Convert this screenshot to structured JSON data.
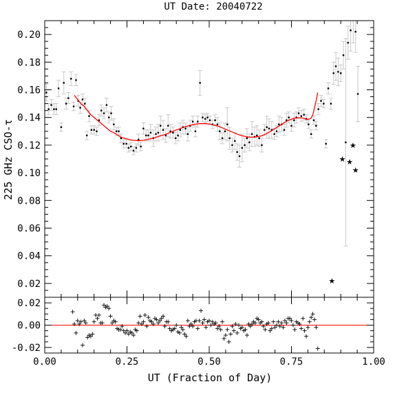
{
  "chart_data": [
    {
      "type": "scatter",
      "title": "UT Date: 20040722",
      "xlabel": "",
      "ylabel": "225 GHz CSO-τ",
      "xlim": [
        0.0,
        1.0
      ],
      "ylim": [
        0.01,
        0.21
      ],
      "yticks": [
        "0.02",
        "0.04",
        "0.06",
        "0.08",
        "0.10",
        "0.12",
        "0.14",
        "0.16",
        "0.18",
        "0.20"
      ],
      "series": [
        {
          "marker": "dot",
          "color": "#000000",
          "errorbar_color": "#c8c8c8",
          "x": [
            0.005,
            0.012,
            0.02,
            0.028,
            0.035,
            0.042,
            0.05,
            0.058,
            0.065,
            0.072,
            0.08,
            0.088,
            0.095,
            0.102,
            0.108,
            0.115,
            0.122,
            0.128,
            0.135,
            0.142,
            0.15,
            0.158,
            0.165,
            0.172,
            0.18,
            0.188,
            0.195,
            0.202,
            0.21,
            0.218,
            0.225,
            0.232,
            0.24,
            0.248,
            0.255,
            0.262,
            0.27,
            0.278,
            0.285,
            0.292,
            0.3,
            0.308,
            0.315,
            0.322,
            0.33,
            0.338,
            0.345,
            0.352,
            0.36,
            0.368,
            0.375,
            0.382,
            0.39,
            0.398,
            0.405,
            0.412,
            0.42,
            0.428,
            0.435,
            0.442,
            0.45,
            0.458,
            0.465,
            0.472,
            0.48,
            0.488,
            0.495,
            0.502,
            0.51,
            0.518,
            0.525,
            0.532,
            0.54,
            0.548,
            0.555,
            0.562,
            0.57,
            0.578,
            0.585,
            0.592,
            0.6,
            0.608,
            0.615,
            0.622,
            0.63,
            0.638,
            0.645,
            0.652,
            0.66,
            0.668,
            0.675,
            0.682,
            0.69,
            0.698,
            0.705,
            0.712,
            0.72,
            0.728,
            0.735,
            0.742,
            0.75,
            0.758,
            0.765,
            0.772,
            0.78,
            0.788,
            0.795,
            0.802,
            0.81,
            0.818,
            0.825,
            0.832,
            0.84,
            0.848,
            0.855,
            0.862,
            0.87,
            0.878,
            0.885,
            0.892,
            0.9,
            0.908,
            0.915,
            0.922,
            0.93,
            0.938,
            0.945,
            0.952
          ],
          "y": [
            0.158,
            0.146,
            0.149,
            0.146,
            0.146,
            0.161,
            0.133,
            0.165,
            0.15,
            0.154,
            0.168,
            0.148,
            0.167,
            0.152,
            0.147,
            0.153,
            0.15,
            0.127,
            0.141,
            0.131,
            0.131,
            0.13,
            0.138,
            0.145,
            0.143,
            0.149,
            0.14,
            0.143,
            0.135,
            0.13,
            0.13,
            0.125,
            0.121,
            0.121,
            0.118,
            0.119,
            0.116,
            0.118,
            0.124,
            0.119,
            0.132,
            0.127,
            0.127,
            0.129,
            0.125,
            0.128,
            0.129,
            0.134,
            0.131,
            0.127,
            0.134,
            0.13,
            0.129,
            0.125,
            0.127,
            0.131,
            0.133,
            0.132,
            0.128,
            0.134,
            0.137,
            0.13,
            0.137,
            0.165,
            0.14,
            0.139,
            0.14,
            0.138,
            0.135,
            0.138,
            0.135,
            0.13,
            0.125,
            0.13,
            0.135,
            0.125,
            0.12,
            0.123,
            0.115,
            0.112,
            0.118,
            0.12,
            0.125,
            0.122,
            0.128,
            0.126,
            0.127,
            0.125,
            0.12,
            0.131,
            0.133,
            0.132,
            0.131,
            0.128,
            0.13,
            0.135,
            0.135,
            0.131,
            0.138,
            0.14,
            0.134,
            0.138,
            0.14,
            0.143,
            0.141,
            0.142,
            0.139,
            0.135,
            0.128,
            0.138,
            0.134,
            0.146,
            0.152,
            0.15,
            0.121,
            0.161,
            0.15,
            0.172,
            0.177,
            0.173,
            0.172,
            0.185,
            0.122,
            0.194,
            0.203,
            0.212,
            0.202,
            0.157
          ],
          "yerr": [
            0.006,
            0.004,
            0.004,
            0.004,
            0.004,
            0.006,
            0.003,
            0.008,
            0.004,
            0.004,
            0.005,
            0.003,
            0.004,
            0.004,
            0.004,
            0.004,
            0.004,
            0.003,
            0.004,
            0.003,
            0.003,
            0.003,
            0.004,
            0.004,
            0.004,
            0.005,
            0.004,
            0.005,
            0.004,
            0.003,
            0.003,
            0.003,
            0.003,
            0.003,
            0.003,
            0.003,
            0.003,
            0.003,
            0.004,
            0.003,
            0.004,
            0.004,
            0.004,
            0.006,
            0.006,
            0.005,
            0.006,
            0.007,
            0.007,
            0.005,
            0.008,
            0.005,
            0.004,
            0.004,
            0.004,
            0.005,
            0.005,
            0.004,
            0.005,
            0.004,
            0.004,
            0.004,
            0.004,
            0.009,
            0.003,
            0.003,
            0.003,
            0.003,
            0.003,
            0.004,
            0.005,
            0.006,
            0.004,
            0.006,
            0.012,
            0.008,
            0.005,
            0.006,
            0.006,
            0.008,
            0.01,
            0.005,
            0.007,
            0.006,
            0.009,
            0.007,
            0.007,
            0.006,
            0.005,
            0.004,
            0.008,
            0.007,
            0.006,
            0.004,
            0.004,
            0.006,
            0.005,
            0.004,
            0.005,
            0.004,
            0.004,
            0.005,
            0.004,
            0.004,
            0.004,
            0.004,
            0.003,
            0.003,
            0.003,
            0.003,
            0.003,
            0.004,
            0.004,
            0.003,
            0.003,
            0.004,
            0.004,
            0.008,
            0.01,
            0.01,
            0.006,
            0.01,
            0.075,
            0.012,
            0.015,
            0.018,
            0.015,
            0.02
          ]
        },
        {
          "marker": "star",
          "color": "#000000",
          "x": [
            0.873,
            0.905,
            0.927,
            0.937,
            0.945
          ],
          "y": [
            0.022,
            0.11,
            0.108,
            0.12,
            0.102
          ]
        },
        {
          "type": "line",
          "color": "#ff0000",
          "x": [
            0.09,
            0.1,
            0.11,
            0.12,
            0.13,
            0.14,
            0.15,
            0.16,
            0.17,
            0.18,
            0.19,
            0.2,
            0.21,
            0.22,
            0.23,
            0.24,
            0.25,
            0.26,
            0.27,
            0.28,
            0.29,
            0.3,
            0.31,
            0.32,
            0.33,
            0.34,
            0.35,
            0.36,
            0.37,
            0.38,
            0.39,
            0.4,
            0.41,
            0.42,
            0.43,
            0.44,
            0.45,
            0.46,
            0.47,
            0.48,
            0.49,
            0.5,
            0.51,
            0.52,
            0.53,
            0.54,
            0.55,
            0.56,
            0.57,
            0.58,
            0.59,
            0.6,
            0.61,
            0.62,
            0.63,
            0.64,
            0.65,
            0.66,
            0.67,
            0.68,
            0.69,
            0.7,
            0.71,
            0.72,
            0.73,
            0.74,
            0.75,
            0.76,
            0.77,
            0.78,
            0.79,
            0.8,
            0.81,
            0.815,
            0.82,
            0.825,
            0.83
          ],
          "y": [
            0.156,
            0.153,
            0.15,
            0.148,
            0.145,
            0.142,
            0.14,
            0.138,
            0.136,
            0.134,
            0.132,
            0.13,
            0.129,
            0.1275,
            0.126,
            0.125,
            0.1245,
            0.1238,
            0.1235,
            0.1233,
            0.1233,
            0.1235,
            0.124,
            0.1245,
            0.125,
            0.1258,
            0.1265,
            0.1273,
            0.128,
            0.129,
            0.13,
            0.131,
            0.1318,
            0.1328,
            0.1335,
            0.1342,
            0.1348,
            0.1352,
            0.1355,
            0.1355,
            0.1355,
            0.1353,
            0.1348,
            0.1342,
            0.1335,
            0.1325,
            0.1315,
            0.1305,
            0.1295,
            0.1285,
            0.1275,
            0.1268,
            0.1262,
            0.1258,
            0.1257,
            0.1258,
            0.1262,
            0.1268,
            0.1278,
            0.129,
            0.1305,
            0.132,
            0.1335,
            0.135,
            0.1365,
            0.1378,
            0.1388,
            0.1395,
            0.1398,
            0.1398,
            0.1392,
            0.1385,
            0.1395,
            0.142,
            0.147,
            0.152,
            0.158
          ]
        }
      ]
    },
    {
      "type": "scatter",
      "title": "",
      "xlabel": "UT (Fraction of Day)",
      "ylabel": "",
      "xlim": [
        0.0,
        1.0
      ],
      "ylim": [
        -0.025,
        0.025
      ],
      "xticks": [
        "0.00",
        "0.25",
        "0.50",
        "0.75",
        "1.00"
      ],
      "yticks": [
        "-0.02",
        "0.00",
        "0.02"
      ],
      "zero_line_color": "#ff0000",
      "series": [
        {
          "marker": "plus",
          "color": "#000000",
          "x": [
            0.085,
            0.09,
            0.095,
            0.1,
            0.105,
            0.11,
            0.115,
            0.12,
            0.125,
            0.13,
            0.135,
            0.14,
            0.145,
            0.15,
            0.155,
            0.16,
            0.165,
            0.17,
            0.175,
            0.18,
            0.185,
            0.19,
            0.195,
            0.2,
            0.205,
            0.21,
            0.215,
            0.22,
            0.225,
            0.23,
            0.235,
            0.24,
            0.245,
            0.25,
            0.255,
            0.26,
            0.265,
            0.27,
            0.275,
            0.28,
            0.285,
            0.29,
            0.295,
            0.3,
            0.305,
            0.31,
            0.315,
            0.32,
            0.325,
            0.33,
            0.335,
            0.34,
            0.345,
            0.35,
            0.355,
            0.36,
            0.365,
            0.37,
            0.375,
            0.38,
            0.385,
            0.39,
            0.395,
            0.4,
            0.405,
            0.41,
            0.415,
            0.42,
            0.425,
            0.43,
            0.435,
            0.44,
            0.445,
            0.45,
            0.455,
            0.46,
            0.465,
            0.47,
            0.475,
            0.48,
            0.485,
            0.49,
            0.495,
            0.5,
            0.505,
            0.51,
            0.515,
            0.52,
            0.525,
            0.53,
            0.535,
            0.54,
            0.545,
            0.55,
            0.555,
            0.56,
            0.565,
            0.57,
            0.575,
            0.58,
            0.585,
            0.59,
            0.595,
            0.6,
            0.605,
            0.61,
            0.615,
            0.62,
            0.625,
            0.63,
            0.635,
            0.64,
            0.645,
            0.65,
            0.655,
            0.66,
            0.665,
            0.67,
            0.675,
            0.68,
            0.685,
            0.69,
            0.695,
            0.7,
            0.705,
            0.71,
            0.715,
            0.72,
            0.725,
            0.73,
            0.735,
            0.74,
            0.745,
            0.75,
            0.755,
            0.76,
            0.765,
            0.77,
            0.775,
            0.78,
            0.785,
            0.79,
            0.795,
            0.8,
            0.805,
            0.81,
            0.815,
            0.82,
            0.825,
            0.83
          ],
          "y": [
            0.012,
            0.001,
            -0.007,
            0.004,
            0.001,
            0.003,
            -0.018,
            0.004,
            0.002,
            -0.011,
            -0.009,
            -0.01,
            -0.008,
            0.003,
            0.009,
            0.006,
            0.009,
            0.002,
            0.002,
            0.018,
            0.016,
            0.017,
            0.015,
            0.008,
            0.002,
            0.004,
            0.003,
            -0.003,
            -0.004,
            -0.004,
            -0.001,
            -0.005,
            -0.007,
            -0.005,
            -0.008,
            -0.006,
            -0.007,
            -0.009,
            -0.004,
            -0.005,
            0.002,
            0.008,
            0.001,
            0.003,
            0.009,
            -0.001,
            0.007,
            0.004,
            0.003,
            0.001,
            0.006,
            0.005,
            0.002,
            0.004,
            0.006,
            0.008,
            -0.001,
            0.003,
            0.003,
            -0.003,
            -0.005,
            -0.004,
            -0.003,
            0.0,
            -0.006,
            -0.007,
            -0.002,
            -0.004,
            -0.008,
            -0.01,
            0.004,
            -0.001,
            0.001,
            -0.001,
            0.003,
            0.004,
            -0.003,
            0.004,
            0.013,
            0.002,
            0.005,
            -0.002,
            0.003,
            0.004,
            0.0,
            0.003,
            0.001,
            0.002,
            -0.003,
            -0.001,
            -0.004,
            0.003,
            -0.012,
            -0.009,
            -0.004,
            -0.015,
            -0.008,
            -0.001,
            -0.005,
            0.001,
            -0.007,
            0.0,
            -0.003,
            -0.002,
            -0.005,
            -0.004,
            -0.009,
            0.001,
            -0.001,
            0.001,
            0.003,
            0.002,
            0.006,
            0.005,
            0.002,
            0.003,
            -0.001,
            -0.004,
            0.001,
            0.002,
            -0.005,
            -0.003,
            0.003,
            -0.002,
            0.0,
            0.003,
            -0.001,
            0.002,
            -0.002,
            0.004,
            0.002,
            0.006,
            0.006,
            0.004,
            0.0,
            -0.004,
            0.003,
            0.002,
            0.001,
            -0.003,
            0.006,
            -0.005,
            -0.01,
            -0.002,
            0.003,
            0.007,
            0.01,
            0.005,
            -0.002,
            -0.021
          ]
        }
      ]
    }
  ]
}
